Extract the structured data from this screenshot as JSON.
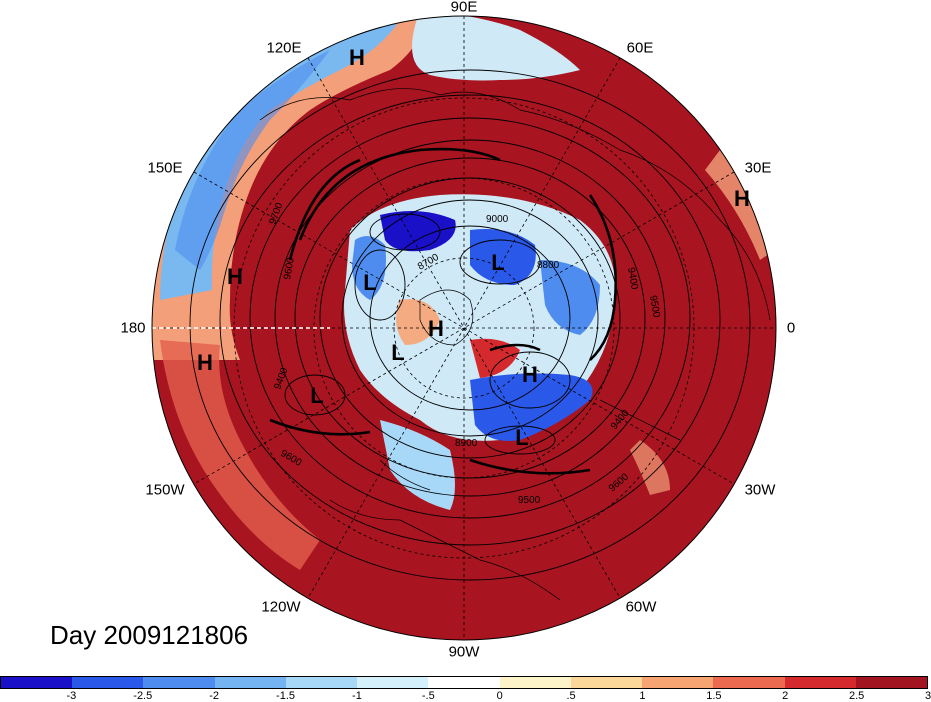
{
  "title": "Day 2009121806",
  "longitude_labels": {
    "e90": "90E",
    "e120": "120E",
    "e60": "60E",
    "e150": "150E",
    "e30": "30E",
    "w180": "180",
    "zero": "0",
    "w150": "150W",
    "w30": "30W",
    "w120": "120W",
    "w60": "60W",
    "w90": "90W"
  },
  "pressure_systems": [
    {
      "label": "H"
    },
    {
      "label": "H"
    },
    {
      "label": "H"
    },
    {
      "label": "H"
    },
    {
      "label": "H"
    },
    {
      "label": "H"
    },
    {
      "label": "L"
    },
    {
      "label": "L"
    },
    {
      "label": "L"
    },
    {
      "label": "L"
    },
    {
      "label": "L"
    }
  ],
  "contour_labels": [
    "9700",
    "9600",
    "9000",
    "8800",
    "8700",
    "9400",
    "9500",
    "9400",
    "9600",
    "8900",
    "9500",
    "9400",
    "9600"
  ],
  "colorbar": {
    "ticks": [
      "-3",
      "-2.5",
      "-2",
      "-1.5",
      "-1",
      "-.5",
      "0",
      ".5",
      "1",
      "1.5",
      "2",
      "2.5",
      "3"
    ],
    "colors": [
      "#1a10c8",
      "#2a58e8",
      "#4e8cef",
      "#74b4f3",
      "#a8d8f8",
      "#d4f0fa",
      "#ffffff",
      "#fdf3c8",
      "#fbd79a",
      "#f7a473",
      "#ec6b50",
      "#d42a2e",
      "#a2141f"
    ]
  }
}
